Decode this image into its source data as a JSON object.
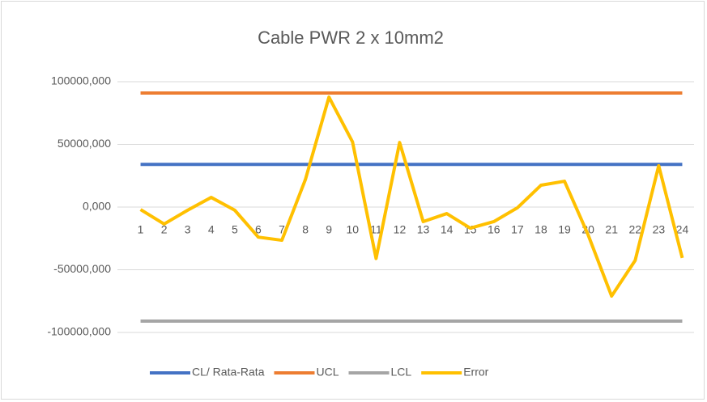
{
  "chart_data": {
    "type": "line",
    "title": "Cable PWR 2 x 10mm2",
    "categories": [
      "1",
      "2",
      "3",
      "4",
      "5",
      "6",
      "7",
      "8",
      "9",
      "10",
      "11",
      "12",
      "13",
      "14",
      "15",
      "16",
      "17",
      "18",
      "19",
      "20",
      "21",
      "22",
      "23",
      "24"
    ],
    "series": [
      {
        "name": "CL/ Rata-Rata",
        "color": "#4472c4",
        "values": [
          34000,
          34000,
          34000,
          34000,
          34000,
          34000,
          34000,
          34000,
          34000,
          34000,
          34000,
          34000,
          34000,
          34000,
          34000,
          34000,
          34000,
          34000,
          34000,
          34000,
          34000,
          34000,
          34000,
          34000
        ]
      },
      {
        "name": "UCL",
        "color": "#ed7d31",
        "values": [
          91000,
          91000,
          91000,
          91000,
          91000,
          91000,
          91000,
          91000,
          91000,
          91000,
          91000,
          91000,
          91000,
          91000,
          91000,
          91000,
          91000,
          91000,
          91000,
          91000,
          91000,
          91000,
          91000,
          91000
        ]
      },
      {
        "name": "LCL",
        "color": "#a5a5a5",
        "values": [
          -91000,
          -91000,
          -91000,
          -91000,
          -91000,
          -91000,
          -91000,
          -91000,
          -91000,
          -91000,
          -91000,
          -91000,
          -91000,
          -91000,
          -91000,
          -91000,
          -91000,
          -91000,
          -91000,
          -91000,
          -91000,
          -91000,
          -91000,
          -91000
        ]
      },
      {
        "name": "Error",
        "color": "#ffc000",
        "values": [
          -2000,
          -13500,
          -2500,
          7700,
          -2500,
          -24000,
          -26500,
          22000,
          87700,
          52000,
          -41000,
          51500,
          -11600,
          -5200,
          -16800,
          -11600,
          -600,
          17400,
          20600,
          -22000,
          -71000,
          -42600,
          33000,
          -40600
        ]
      }
    ],
    "ylim": [
      -100000,
      100000
    ],
    "yticks": [
      {
        "value": -100000,
        "label": "-100000,000"
      },
      {
        "value": -50000,
        "label": "-50000,000"
      },
      {
        "value": 0,
        "label": "0,000"
      },
      {
        "value": 50000,
        "label": "50000,000"
      },
      {
        "value": 100000,
        "label": "100000,000"
      }
    ],
    "grid": true,
    "legend": "bottom"
  }
}
